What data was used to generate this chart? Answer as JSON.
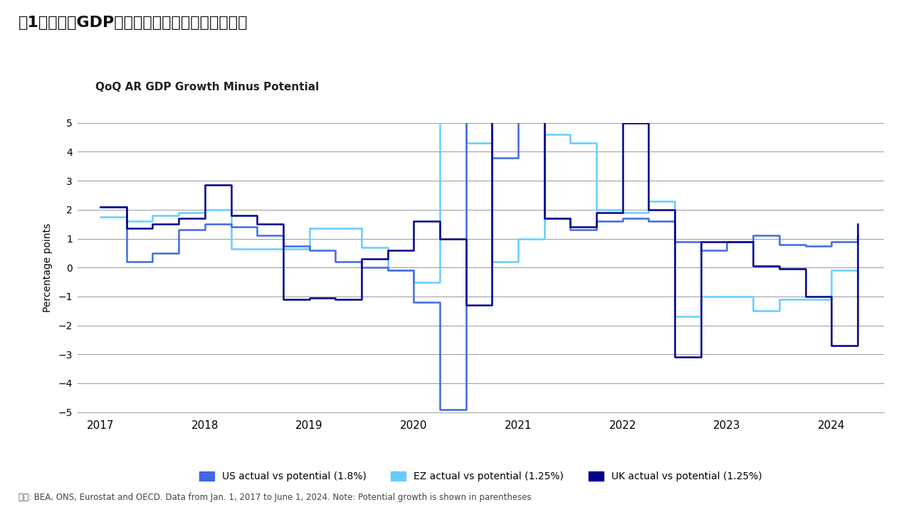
{
  "title_jp": "図1：実際のGDP成長率と潜在成長率のギャップ",
  "subtitle": "QoQ AR GDP Growth Minus Potential",
  "ylabel": "Percentage points",
  "source": "出所: BEA, ONS, Eurostat and OECD. Data from Jan. 1, 2017 to June 1, 2024. Note: Potential growth is shown in parentheses",
  "ylim": [
    -5,
    5
  ],
  "bg_color": "#ffffff",
  "grid_color": "#999999",
  "us_color": "#4169e1",
  "ez_color": "#66ccff",
  "uk_color": "#00008b",
  "legend": [
    {
      "label": "US actual vs potential (1.8%)",
      "color": "#4169e1"
    },
    {
      "label": "EZ actual vs potential (1.25%)",
      "color": "#66ccff"
    },
    {
      "label": "UK actual vs potential (1.25%)",
      "color": "#00008b"
    }
  ],
  "us_x": [
    2017.0,
    2017.25,
    2017.5,
    2017.75,
    2018.0,
    2018.25,
    2018.5,
    2018.75,
    2019.0,
    2019.25,
    2019.5,
    2019.75,
    2020.0,
    2020.25,
    2020.5,
    2020.75,
    2021.0,
    2021.25,
    2021.5,
    2021.75,
    2022.0,
    2022.25,
    2022.5,
    2022.75,
    2023.0,
    2023.25,
    2023.5,
    2023.75,
    2024.0,
    2024.25
  ],
  "us_y": [
    2.1,
    0.2,
    0.5,
    1.3,
    1.5,
    1.4,
    1.1,
    0.75,
    0.6,
    0.2,
    0.0,
    -0.1,
    -1.2,
    -4.9,
    5.1,
    3.8,
    5.1,
    1.7,
    1.3,
    1.6,
    1.7,
    1.6,
    0.9,
    0.6,
    0.9,
    1.1,
    0.8,
    0.75,
    0.9,
    1.1
  ],
  "ez_x": [
    2017.0,
    2017.25,
    2017.5,
    2017.75,
    2018.0,
    2018.25,
    2018.5,
    2018.75,
    2019.0,
    2019.25,
    2019.5,
    2019.75,
    2020.0,
    2020.25,
    2020.5,
    2020.75,
    2021.0,
    2021.25,
    2021.5,
    2021.75,
    2022.0,
    2022.25,
    2022.5,
    2022.75,
    2023.0,
    2023.25,
    2023.5,
    2023.75,
    2024.0,
    2024.25
  ],
  "ez_y": [
    1.75,
    1.6,
    1.8,
    1.9,
    2.0,
    0.65,
    0.65,
    0.65,
    1.35,
    1.35,
    0.7,
    -0.1,
    -0.5,
    5.1,
    4.3,
    0.2,
    1.0,
    4.6,
    4.3,
    2.0,
    1.9,
    2.3,
    -1.7,
    -1.0,
    -1.0,
    -1.5,
    -1.1,
    -1.1,
    -0.1,
    -0.35
  ],
  "uk_x": [
    2017.0,
    2017.25,
    2017.5,
    2017.75,
    2018.0,
    2018.25,
    2018.5,
    2018.75,
    2019.0,
    2019.25,
    2019.5,
    2019.75,
    2020.0,
    2020.25,
    2020.5,
    2020.75,
    2021.0,
    2021.25,
    2021.5,
    2021.75,
    2022.0,
    2022.25,
    2022.5,
    2022.75,
    2023.0,
    2023.25,
    2023.5,
    2023.75,
    2024.0,
    2024.25
  ],
  "uk_y": [
    2.1,
    1.35,
    1.5,
    1.7,
    2.85,
    1.8,
    1.5,
    -1.1,
    -1.05,
    -1.1,
    0.3,
    0.6,
    1.6,
    1.0,
    -1.3,
    5.1,
    5.1,
    1.7,
    1.4,
    1.9,
    5.0,
    2.0,
    -3.1,
    0.9,
    0.9,
    0.05,
    -0.05,
    -1.0,
    -2.7,
    1.5
  ]
}
